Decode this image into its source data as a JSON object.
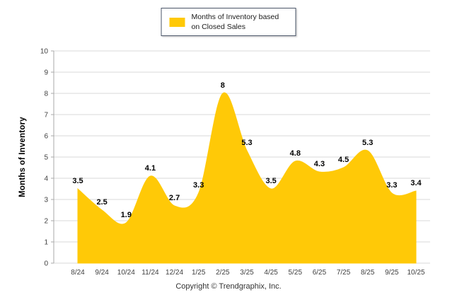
{
  "legend": {
    "label": "Months of Inventory based on Closed Sales",
    "swatch_color": "#FFC907"
  },
  "y_axis": {
    "title": "Months of Inventory"
  },
  "footer": {
    "copyright": "Copyright © Trendgraphix, Inc."
  },
  "chart_data": {
    "type": "area",
    "title": "Months of Inventory based on Closed Sales",
    "categories": [
      "8/24",
      "9/24",
      "10/24",
      "11/24",
      "12/24",
      "1/25",
      "2/25",
      "3/25",
      "4/25",
      "5/25",
      "6/25",
      "7/25",
      "8/25",
      "9/25",
      "10/25"
    ],
    "values": [
      3.5,
      2.5,
      1.9,
      4.1,
      2.7,
      3.3,
      8,
      5.3,
      3.5,
      4.8,
      4.3,
      4.5,
      5.3,
      3.3,
      3.4
    ],
    "xlabel": "",
    "ylabel": "Months of Inventory",
    "ylim": [
      0,
      10
    ],
    "y_ticks": [
      0,
      1,
      2,
      3,
      4,
      5,
      6,
      7,
      8,
      9,
      10
    ],
    "grid": true,
    "legend_position": "top-center",
    "series_color": "#FFC907",
    "label_color": "#000000",
    "grid_color": "#d9d9d9",
    "axis_color": "#aaaaaa",
    "tick_text_color": "#404040"
  }
}
